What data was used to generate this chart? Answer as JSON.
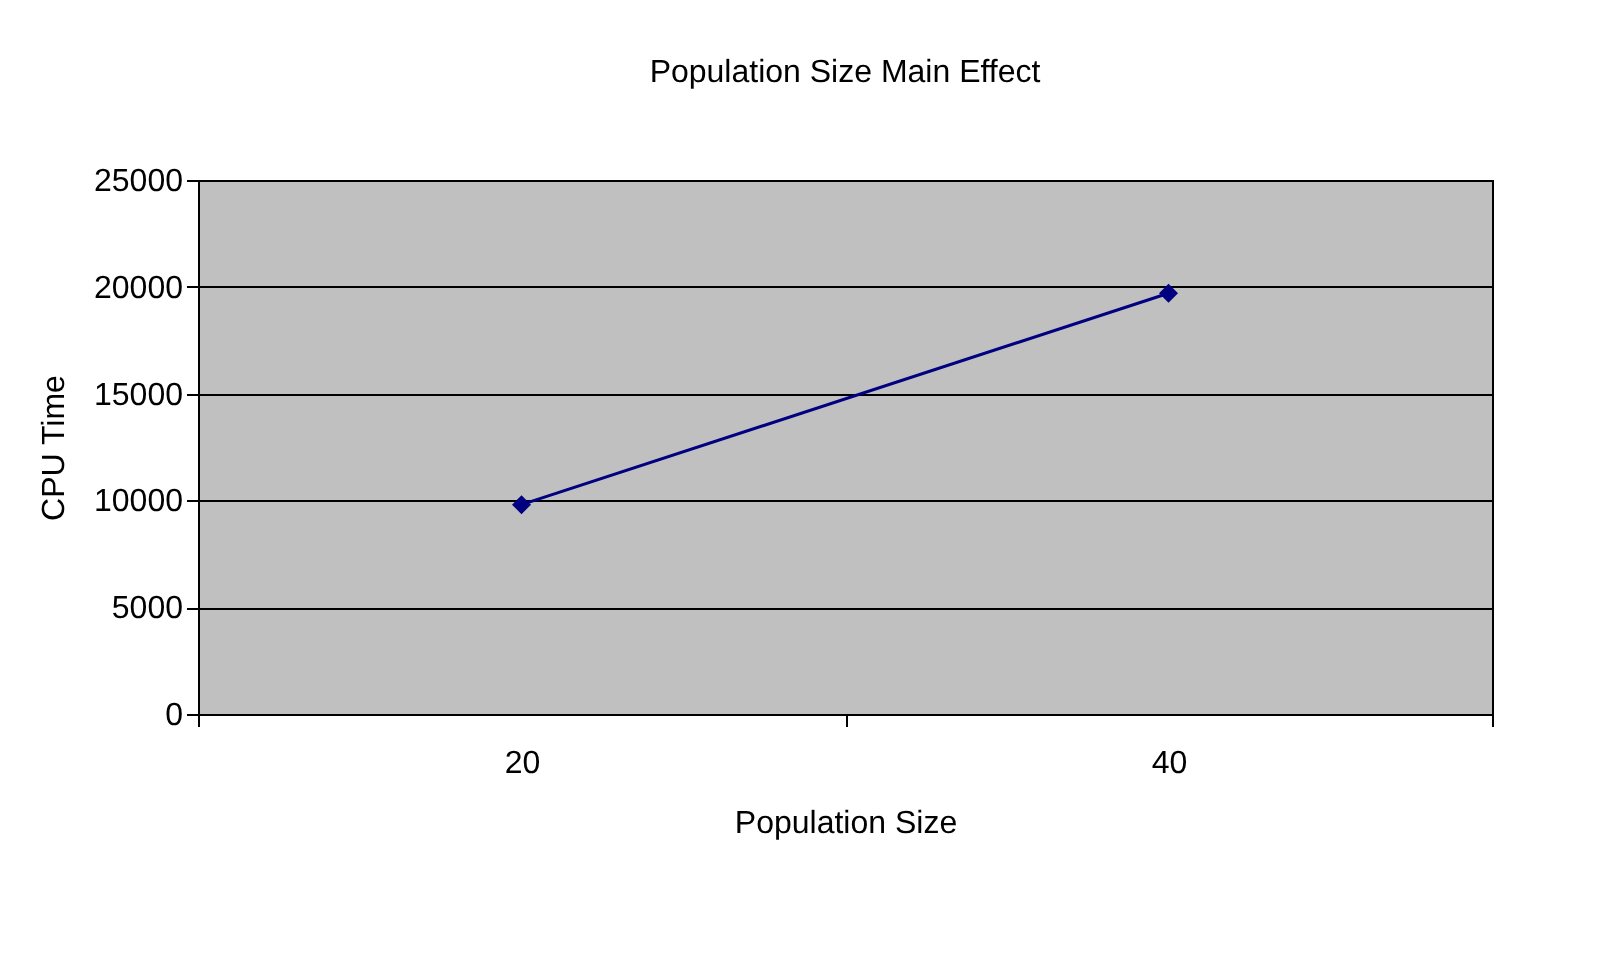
{
  "chart_data": {
    "type": "line",
    "title": "Population Size Main Effect",
    "xlabel": "Population Size",
    "ylabel": "CPU Time",
    "categories": [
      "20",
      "40"
    ],
    "series": [
      {
        "color": "#000080",
        "values": [
          9800,
          19700
        ]
      }
    ],
    "ylim": [
      0,
      25000
    ],
    "yticks": [
      0,
      5000,
      10000,
      15000,
      20000,
      25000
    ],
    "grid": "y",
    "marker": "diamond",
    "line_style": "solid"
  }
}
